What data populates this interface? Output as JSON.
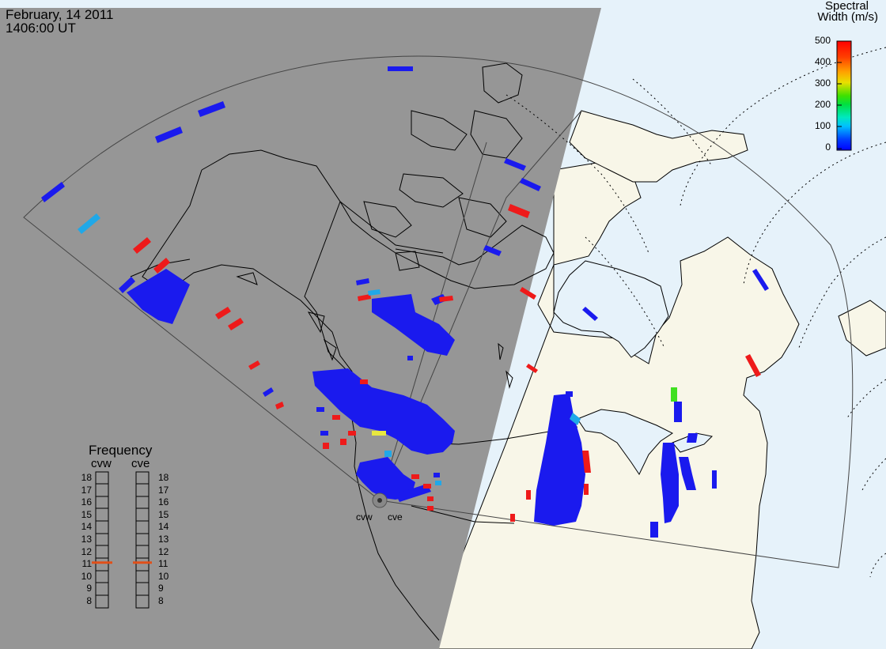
{
  "header": {
    "date": "February, 14 2011",
    "time": "1406:00 UT"
  },
  "colorbar": {
    "title_line1": "Spectral",
    "title_line2": "Width (m/s)",
    "ticks": [
      "500",
      "400",
      "300",
      "200",
      "100",
      "0"
    ],
    "values": [
      500,
      400,
      300,
      200,
      100,
      0
    ]
  },
  "frequency": {
    "title": "Frequency",
    "columns": [
      {
        "label": "cvw",
        "current": 11
      },
      {
        "label": "cve",
        "current": 11
      }
    ],
    "scale": [
      "18",
      "17",
      "16",
      "15",
      "14",
      "13",
      "12",
      "11",
      "10",
      "9",
      "8"
    ],
    "marker_color": "#e0501a"
  },
  "radars": [
    {
      "label": "cvw"
    },
    {
      "label": "cve"
    }
  ],
  "colors": {
    "night": "#969696",
    "land_day": "#f8f6e8",
    "ocean_day": "#e6f2fa",
    "echo_blue": "#1a1aee",
    "echo_red": "#ee1a1a",
    "echo_cyan": "#20a8e8",
    "echo_green": "#40e020"
  }
}
